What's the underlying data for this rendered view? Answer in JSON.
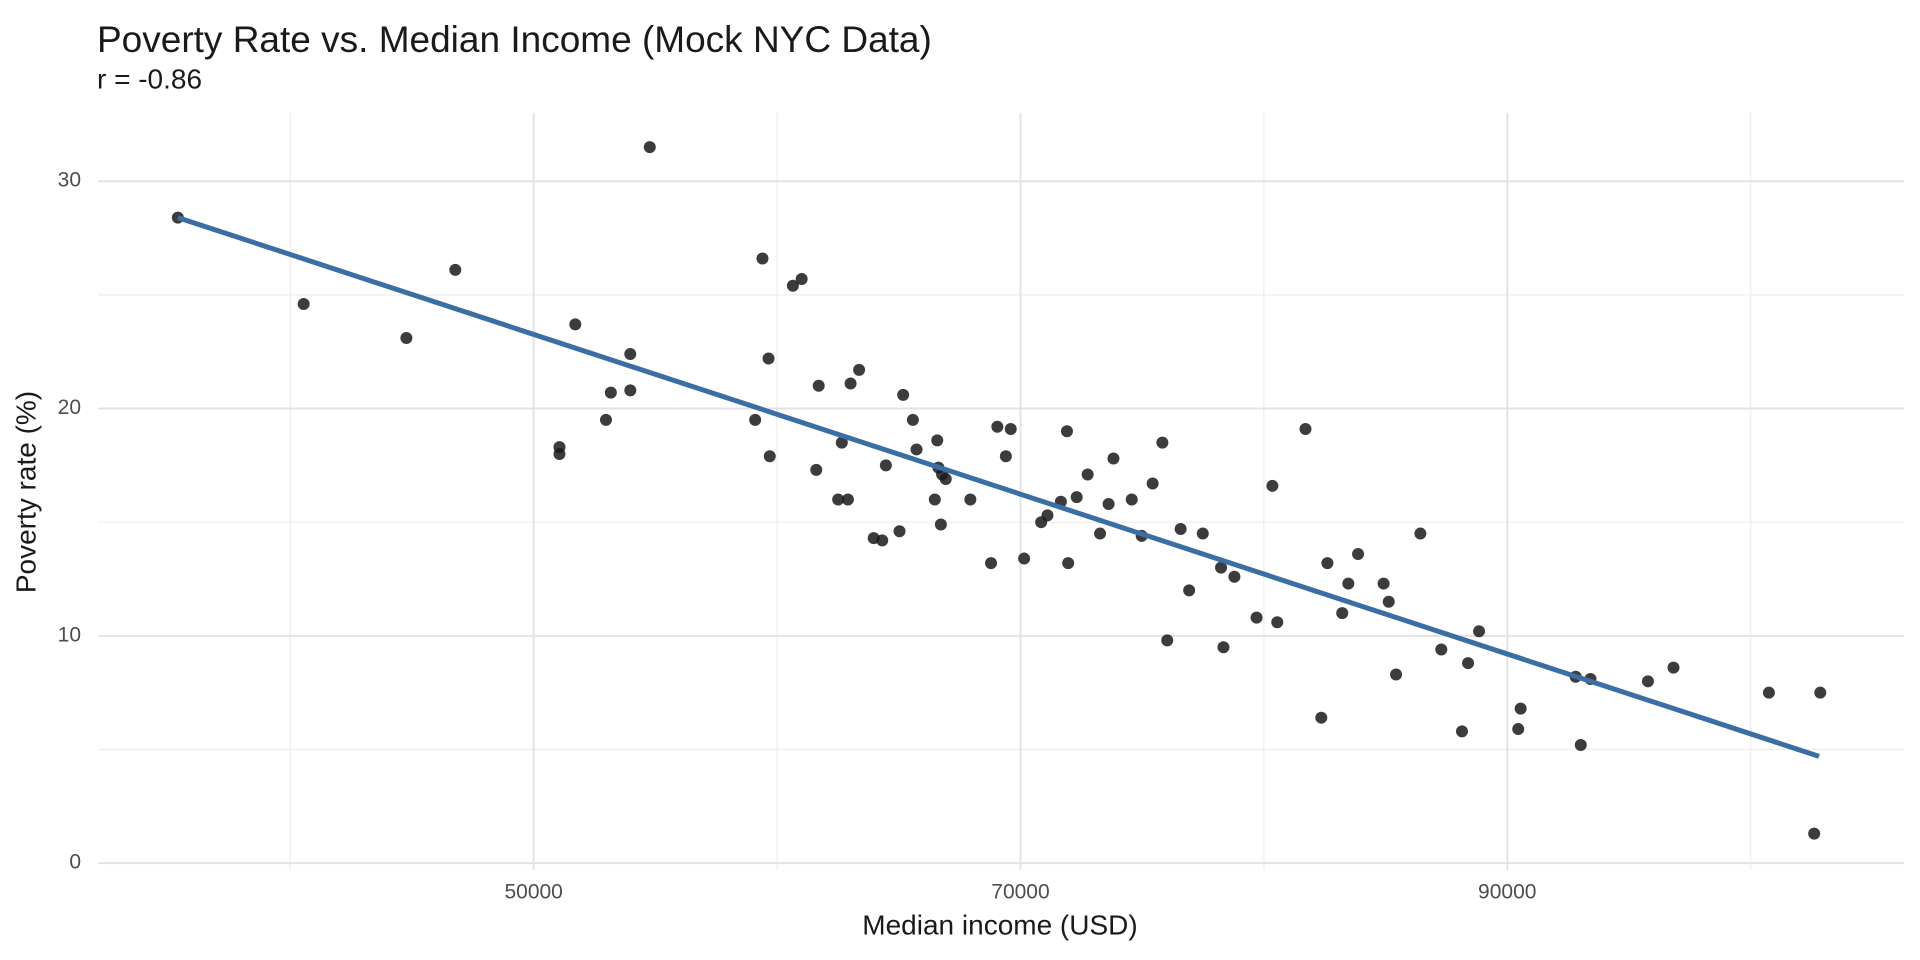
{
  "chart_data": {
    "type": "scatter",
    "title": "Poverty Rate vs. Median Income (Mock NYC Data)",
    "subtitle": "r = -0.86",
    "x_label": "Median income (USD)",
    "y_label": "Poverty rate (%)",
    "xlim": [
      32100,
      106300
    ],
    "ylim": [
      -0.3,
      33.0
    ],
    "xticks": [
      50000,
      70000,
      90000
    ],
    "yticks": [
      0,
      10,
      20,
      30
    ],
    "x_minor_grid": [
      40000,
      60000,
      80000,
      100000
    ],
    "y_minor_grid": [
      5,
      15,
      25
    ],
    "grid": true,
    "point_color": "#1a1a1a",
    "x": [
      35380,
      40550,
      44770,
      46780,
      51060,
      51060,
      51710,
      52970,
      53170,
      53970,
      53970,
      54770,
      59100,
      59400,
      59650,
      59700,
      60650,
      61010,
      61610,
      61710,
      62510,
      62660,
      62910,
      63020,
      63370,
      63970,
      64320,
      64470,
      65030,
      65180,
      65580,
      65730,
      66480,
      66580,
      66630,
      66730,
      66780,
      66930,
      67940,
      68790,
      69050,
      69400,
      69600,
      70150,
      70850,
      71110,
      71660,
      71910,
      71960,
      72310,
      72760,
      73270,
      73620,
      73820,
      74570,
      74980,
      75430,
      75830,
      76030,
      76580,
      76930,
      77490,
      78240,
      78340,
      78790,
      79700,
      80350,
      80550,
      81710,
      82360,
      82610,
      83220,
      83470,
      83870,
      84920,
      85130,
      85430,
      86430,
      87290,
      88140,
      88390,
      88840,
      90450,
      90550,
      92810,
      93020,
      93420,
      95780,
      96830,
      100750,
      102610,
      102860
    ],
    "values": [
      28.4,
      24.6,
      23.1,
      26.1,
      18.3,
      18.0,
      23.7,
      19.5,
      20.7,
      22.4,
      20.8,
      31.5,
      19.5,
      26.6,
      22.2,
      17.9,
      25.4,
      25.7,
      17.3,
      21.0,
      16.0,
      18.5,
      16.0,
      21.1,
      21.7,
      14.3,
      14.2,
      17.5,
      14.6,
      20.6,
      19.5,
      18.2,
      16.0,
      18.6,
      17.4,
      14.9,
      17.1,
      16.9,
      16.0,
      13.2,
      19.2,
      17.9,
      19.1,
      13.4,
      15.0,
      15.3,
      15.9,
      19.0,
      13.2,
      16.1,
      17.1,
      14.5,
      15.8,
      17.8,
      16.0,
      14.4,
      16.7,
      18.5,
      9.8,
      14.7,
      12.0,
      14.5,
      13.0,
      9.5,
      12.6,
      10.8,
      16.6,
      10.6,
      19.1,
      6.4,
      13.2,
      11.0,
      12.3,
      13.6,
      12.3,
      11.5,
      8.3,
      14.5,
      9.4,
      5.8,
      8.8,
      10.2,
      5.9,
      6.8,
      8.2,
      5.2,
      8.1,
      8.0,
      8.6,
      7.5,
      1.3,
      7.5
    ],
    "trend_line": {
      "color": "#3b6ea5",
      "x": [
        35380,
        102810
      ],
      "values": [
        28.4,
        4.7
      ]
    }
  }
}
